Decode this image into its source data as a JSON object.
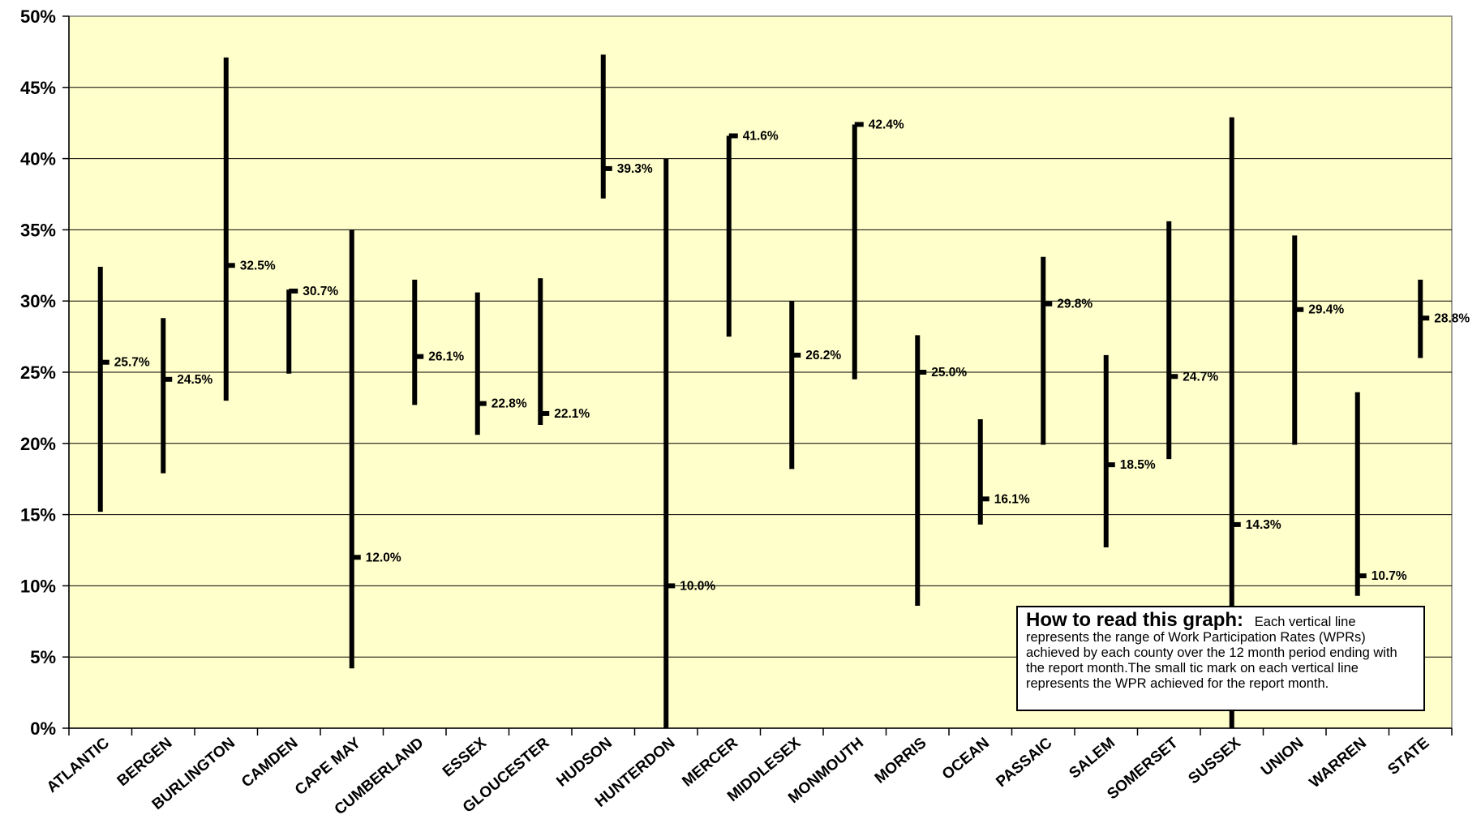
{
  "chart_data": {
    "type": "range",
    "title": "",
    "xlabel": "",
    "ylabel": "",
    "ylim": [
      0,
      50
    ],
    "ytick_step": 5,
    "ytick_suffix": "%",
    "grid": true,
    "plot_background": "#FFFFCC",
    "bar_color": "#000000",
    "categories": [
      "ATLANTIC",
      "BERGEN",
      "BURLINGTON",
      "CAMDEN",
      "CAPE MAY",
      "CUMBERLAND",
      "ESSEX",
      "GLOUCESTER",
      "HUDSON",
      "HUNTERDON",
      "MERCER",
      "MIDDLESEX",
      "MONMOUTH",
      "MORRIS",
      "OCEAN",
      "PASSAIC",
      "SALEM",
      "SOMERSET",
      "SUSSEX",
      "UNION",
      "WARREN",
      "STATE"
    ],
    "low": [
      15.2,
      17.9,
      23.0,
      24.9,
      4.2,
      22.7,
      20.6,
      21.3,
      37.2,
      0.0,
      27.5,
      18.2,
      24.5,
      8.6,
      14.3,
      19.9,
      12.7,
      18.9,
      0.0,
      19.9,
      9.3,
      26.0
    ],
    "high": [
      32.4,
      28.8,
      47.1,
      30.8,
      35.0,
      31.5,
      30.6,
      31.6,
      47.3,
      40.0,
      41.6,
      30.0,
      42.4,
      27.6,
      21.7,
      33.1,
      26.2,
      35.6,
      42.9,
      34.6,
      23.6,
      31.5
    ],
    "current": [
      25.7,
      24.5,
      32.5,
      30.7,
      12.0,
      26.1,
      22.8,
      22.1,
      39.3,
      10.0,
      41.6,
      26.2,
      42.4,
      25.0,
      16.1,
      29.8,
      18.5,
      24.7,
      14.3,
      29.4,
      10.7,
      28.8
    ],
    "current_labels": [
      "25.7%",
      "24.5%",
      "32.5%",
      "30.7%",
      "12.0%",
      "26.1%",
      "22.8%",
      "22.1%",
      "39.3%",
      "10.0%",
      "41.6%",
      "26.2%",
      "42.4%",
      "25.0%",
      "16.1%",
      "29.8%",
      "18.5%",
      "24.7%",
      "14.3%",
      "29.4%",
      "10.7%",
      "28.8%"
    ]
  },
  "legend_note": {
    "title": "How to read this graph:",
    "text": "Each vertical line represents the range of Work Participation Rates (WPRs) achieved by each county over the 12 month period ending with the report month.The small tic mark on each vertical line represents the WPR achieved for the report month."
  }
}
